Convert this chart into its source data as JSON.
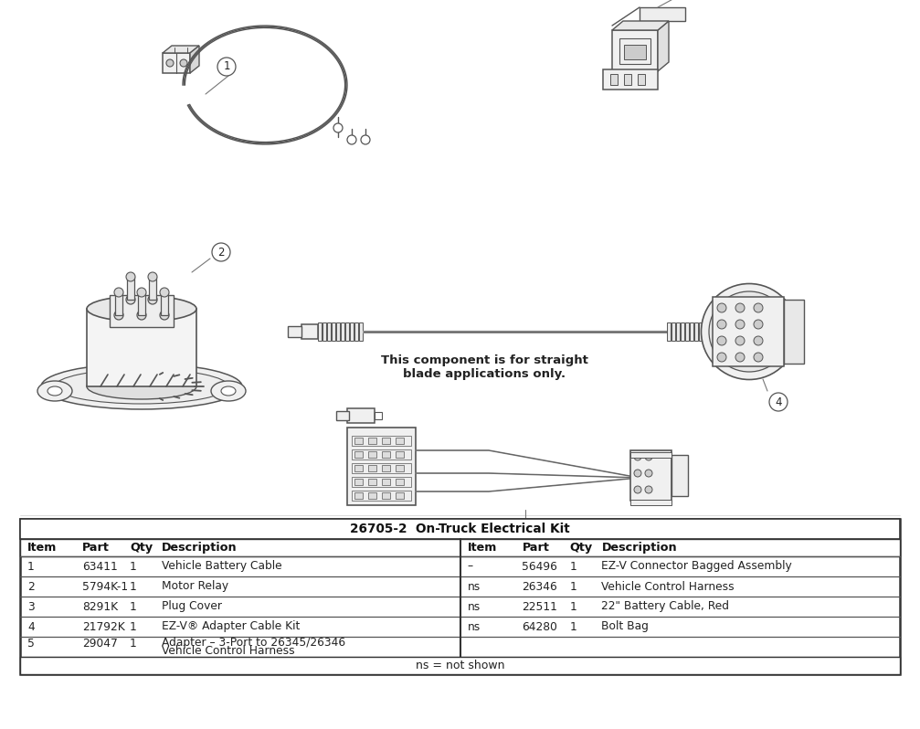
{
  "background_color": "#ffffff",
  "table_title": "26705-2  On-Truck Electrical Kit",
  "col_headers_left": [
    "Item",
    "Part",
    "Qty",
    "Description"
  ],
  "col_headers_right": [
    "Item",
    "Part",
    "Qty",
    "Description"
  ],
  "rows_left": [
    [
      "1",
      "63411",
      "1",
      "Vehicle Battery Cable"
    ],
    [
      "2",
      "5794K-1",
      "1",
      "Motor Relay"
    ],
    [
      "3",
      "8291K",
      "1",
      "Plug Cover"
    ],
    [
      "4",
      "21792K",
      "1",
      "EZ-V® Adapter Cable Kit"
    ],
    [
      "5",
      "29047",
      "1",
      "Adapter – 3-Port to 26345/26346\nVehicle Control Harness"
    ]
  ],
  "rows_right": [
    [
      "–",
      "56496",
      "1",
      "EZ-V Connector Bagged Assembly"
    ],
    [
      "ns",
      "26346",
      "1",
      "Vehicle Control Harness"
    ],
    [
      "ns",
      "22511",
      "1",
      "22\" Battery Cable, Red"
    ],
    [
      "ns",
      "64280",
      "1",
      "Bolt Bag"
    ],
    [
      "",
      "",
      "",
      ""
    ]
  ],
  "footnote": "ns = not shown",
  "straight_blade_note": "This component is for straight\nblade applications only.",
  "lc": "#555555",
  "lw": 1.0
}
